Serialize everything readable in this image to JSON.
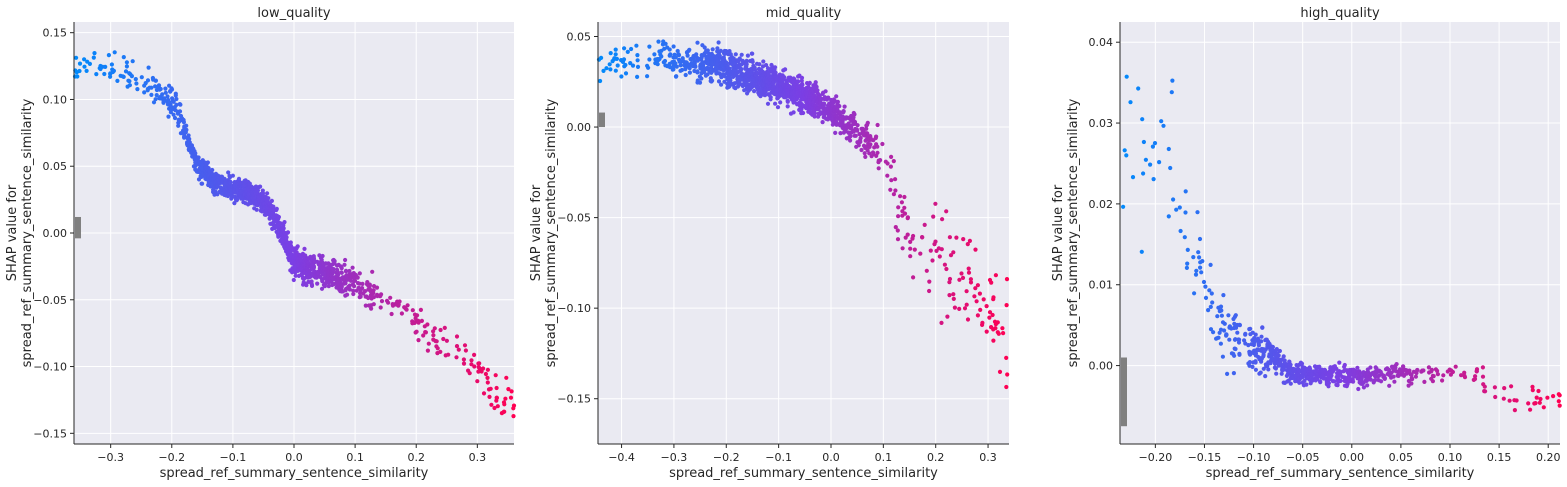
{
  "chart_data": [
    {
      "type": "scatter",
      "title": "low_quality",
      "xlabel": "spread_ref_summary_sentence_similarity",
      "ylabel": [
        "SHAP value for",
        "spread_ref_summary_sentence_similarity"
      ],
      "xlim": [
        -0.36,
        0.36
      ],
      "ylim": [
        -0.158,
        0.158
      ],
      "xticks": [
        -0.3,
        -0.2,
        -0.1,
        0.0,
        0.1,
        0.2,
        0.3
      ],
      "xtick_labels": [
        "−0.3",
        "−0.2",
        "−0.1",
        "0.0",
        "0.1",
        "0.2",
        "0.3"
      ],
      "yticks": [
        -0.15,
        -0.1,
        -0.05,
        0.0,
        0.05,
        0.1,
        0.15
      ],
      "ytick_labels": [
        "−0.15",
        "−0.10",
        "−0.05",
        "0.00",
        "0.05",
        "0.10",
        "0.15"
      ],
      "grid": true,
      "color_scale": [
        "#008afb",
        "#7b3fe4",
        "#ff0052"
      ],
      "nan_color": "#808080",
      "trend": [
        [
          -0.36,
          0.122
        ],
        [
          -0.3,
          0.124
        ],
        [
          -0.25,
          0.115
        ],
        [
          -0.2,
          0.1
        ],
        [
          -0.18,
          0.078
        ],
        [
          -0.16,
          0.052
        ],
        [
          -0.13,
          0.037
        ],
        [
          -0.1,
          0.034
        ],
        [
          -0.06,
          0.028
        ],
        [
          -0.04,
          0.018
        ],
        [
          -0.02,
          0.0
        ],
        [
          0.0,
          -0.023
        ],
        [
          0.03,
          -0.027
        ],
        [
          0.06,
          -0.031
        ],
        [
          0.1,
          -0.038
        ],
        [
          0.14,
          -0.047
        ],
        [
          0.18,
          -0.055
        ],
        [
          0.2,
          -0.065
        ],
        [
          0.22,
          -0.078
        ],
        [
          0.26,
          -0.087
        ],
        [
          0.29,
          -0.097
        ],
        [
          0.32,
          -0.115
        ],
        [
          0.36,
          -0.125
        ]
      ],
      "spread": [
        [
          -0.36,
          0.009
        ],
        [
          -0.2,
          0.008
        ],
        [
          -0.15,
          0.006
        ],
        [
          -0.05,
          0.006
        ],
        [
          0.0,
          0.008
        ],
        [
          0.2,
          0.008
        ],
        [
          0.26,
          0.009
        ],
        [
          0.36,
          0.014
        ]
      ],
      "n_points": 1400,
      "nan_ys": [
        -0.004,
        0.012
      ]
    },
    {
      "type": "scatter",
      "title": "mid_quality",
      "xlabel": "spread_ref_summary_sentence_similarity",
      "ylabel": [
        "SHAP value for",
        "spread_ref_summary_sentence_similarity"
      ],
      "xlim": [
        -0.445,
        0.34
      ],
      "ylim": [
        -0.175,
        0.058
      ],
      "xticks": [
        -0.4,
        -0.3,
        -0.2,
        -0.1,
        0.0,
        0.1,
        0.2,
        0.3
      ],
      "xtick_labels": [
        "−0.4",
        "−0.3",
        "−0.2",
        "−0.1",
        "0.0",
        "0.1",
        "0.2",
        "0.3"
      ],
      "yticks": [
        -0.15,
        -0.1,
        -0.05,
        0.0,
        0.05
      ],
      "ytick_labels": [
        "−0.15",
        "−0.10",
        "−0.05",
        "0.00",
        "0.05"
      ],
      "grid": true,
      "color_scale": [
        "#008afb",
        "#7b3fe4",
        "#ff0052"
      ],
      "nan_color": "#808080",
      "trend": [
        [
          -0.44,
          0.036
        ],
        [
          -0.35,
          0.038
        ],
        [
          -0.25,
          0.036
        ],
        [
          -0.18,
          0.031
        ],
        [
          -0.1,
          0.023
        ],
        [
          -0.05,
          0.017
        ],
        [
          0.0,
          0.01
        ],
        [
          0.05,
          -0.003
        ],
        [
          0.1,
          -0.015
        ],
        [
          0.12,
          -0.035
        ],
        [
          0.14,
          -0.057
        ],
        [
          0.18,
          -0.07
        ],
        [
          0.22,
          -0.074
        ],
        [
          0.26,
          -0.085
        ],
        [
          0.3,
          -0.1
        ],
        [
          0.34,
          -0.115
        ]
      ],
      "spread": [
        [
          -0.44,
          0.007
        ],
        [
          -0.2,
          0.007
        ],
        [
          -0.1,
          0.006
        ],
        [
          0.05,
          0.006
        ],
        [
          0.1,
          0.009
        ],
        [
          0.14,
          0.014
        ],
        [
          0.2,
          0.018
        ],
        [
          0.34,
          0.022
        ]
      ],
      "n_points": 1400,
      "nan_ys": [
        0.0,
        0.008
      ]
    },
    {
      "type": "scatter",
      "title": "high_quality",
      "xlabel": "spread_ref_summary_sentence_similarity",
      "ylabel": [
        "SHAP value for",
        "spread_ref_summary_sentence_similarity"
      ],
      "xlim": [
        -0.236,
        0.212
      ],
      "ylim": [
        -0.0097,
        0.0425
      ],
      "xticks": [
        -0.2,
        -0.15,
        -0.1,
        -0.05,
        0.0,
        0.05,
        0.1,
        0.15,
        0.2
      ],
      "xtick_labels": [
        "−0.20",
        "−0.15",
        "−0.10",
        "−0.05",
        "0.00",
        "0.05",
        "0.10",
        "0.15",
        "0.20"
      ],
      "yticks": [
        0.0,
        0.01,
        0.02,
        0.03,
        0.04
      ],
      "ytick_labels": [
        "0.00",
        "0.01",
        "0.02",
        "0.03",
        "0.04"
      ],
      "grid": true,
      "color_scale": [
        "#008afb",
        "#7b3fe4",
        "#ff0052"
      ],
      "nan_color": "#808080",
      "trend": [
        [
          -0.236,
          0.024
        ],
        [
          -0.2,
          0.025
        ],
        [
          -0.17,
          0.02
        ],
        [
          -0.155,
          0.012
        ],
        [
          -0.14,
          0.006
        ],
        [
          -0.12,
          0.003
        ],
        [
          -0.1,
          0.002
        ],
        [
          -0.08,
          0.001
        ],
        [
          -0.06,
          -0.001
        ],
        [
          0.0,
          -0.0013
        ],
        [
          0.05,
          -0.0012
        ],
        [
          0.13,
          -0.001
        ],
        [
          0.14,
          -0.0035
        ],
        [
          0.212,
          -0.0045
        ]
      ],
      "spread": [
        [
          -0.236,
          0.008
        ],
        [
          -0.17,
          0.007
        ],
        [
          -0.14,
          0.003
        ],
        [
          -0.1,
          0.0018
        ],
        [
          -0.06,
          0.0008
        ],
        [
          0.13,
          0.0008
        ],
        [
          0.14,
          0.0012
        ],
        [
          0.212,
          0.0013
        ]
      ],
      "n_points": 700,
      "nan_ys": [
        -0.0075,
        0.001
      ]
    }
  ]
}
